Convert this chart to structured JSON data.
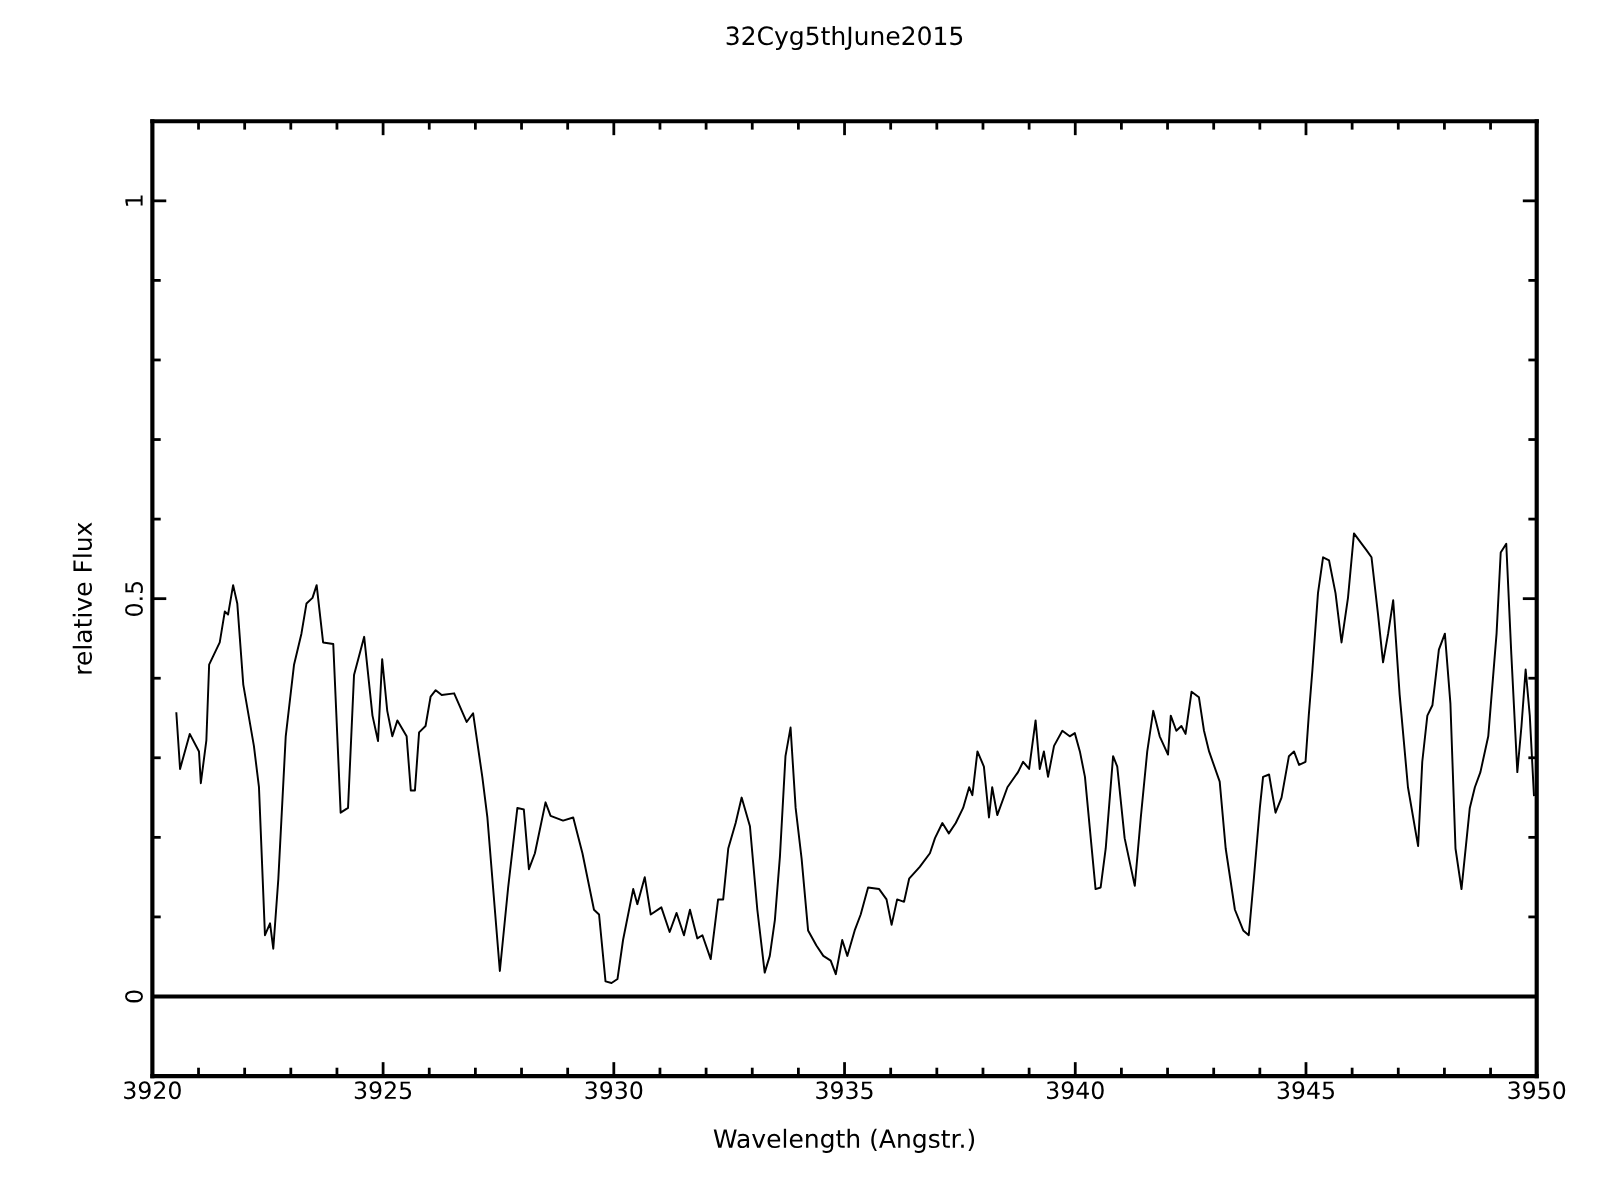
{
  "chart_data": {
    "type": "line",
    "title": "32Cyg5thJune2015",
    "xlabel": "Wavelength (Angstr.)",
    "ylabel": "relative Flux",
    "xlim": [
      3920,
      3950
    ],
    "ylim": [
      -0.1,
      1.1
    ],
    "xticks": [
      3920,
      {
        "value": 3921,
        "label": null
      },
      {
        "value": 3922,
        "label": null
      },
      {
        "value": 3923,
        "label": null
      },
      {
        "value": 3924,
        "label": null
      },
      3925,
      {
        "value": 3926,
        "label": null
      },
      {
        "value": 3927,
        "label": null
      },
      {
        "value": 3928,
        "label": null
      },
      {
        "value": 3929,
        "label": null
      },
      3930,
      {
        "value": 3931,
        "label": null
      },
      {
        "value": 3932,
        "label": null
      },
      {
        "value": 3933,
        "label": null
      },
      {
        "value": 3934,
        "label": null
      },
      3935,
      {
        "value": 3936,
        "label": null
      },
      {
        "value": 3937,
        "label": null
      },
      {
        "value": 3938,
        "label": null
      },
      {
        "value": 3939,
        "label": null
      },
      3940,
      {
        "value": 3941,
        "label": null
      },
      {
        "value": 3942,
        "label": null
      },
      {
        "value": 3943,
        "label": null
      },
      {
        "value": 3944,
        "label": null
      },
      3945,
      {
        "value": 3946,
        "label": null
      },
      {
        "value": 3947,
        "label": null
      },
      {
        "value": 3948,
        "label": null
      },
      {
        "value": 3949,
        "label": null
      },
      3950
    ],
    "yticks": [
      0,
      {
        "value": 0.1,
        "label": null
      },
      {
        "value": 0.2,
        "label": null
      },
      {
        "value": 0.3,
        "label": null
      },
      {
        "value": 0.4,
        "label": null
      },
      0.5,
      {
        "value": 0.6,
        "label": null
      },
      {
        "value": 0.7,
        "label": null
      },
      {
        "value": 0.8,
        "label": null
      },
      {
        "value": 0.9,
        "label": null
      },
      1
    ],
    "grid": false,
    "marker": "none",
    "line_style": "solid",
    "ref_lines": [
      {
        "axis": "y",
        "value": 0,
        "color": "#000000",
        "line_style": "solid"
      }
    ],
    "series": [
      {
        "color": "#000000",
        "x": [
          3920.52,
          3920.6,
          3920.81,
          3921.01,
          3921.05,
          3921.17,
          3921.23,
          3921.46,
          3921.57,
          3921.64,
          3921.75,
          3921.84,
          3921.97,
          3922.2,
          3922.31,
          3922.44,
          3922.55,
          3922.62,
          3922.73,
          3922.89,
          3923.07,
          3923.23,
          3923.34,
          3923.47,
          3923.56,
          3923.7,
          3923.92,
          3924.08,
          3924.24,
          3924.37,
          3924.59,
          3924.77,
          3924.89,
          3924.98,
          3925.09,
          3925.2,
          3925.31,
          3925.51,
          3925.6,
          3925.69,
          3925.78,
          3925.92,
          3926.03,
          3926.14,
          3926.27,
          3926.54,
          3926.81,
          3926.95,
          3927.15,
          3927.26,
          3927.53,
          3927.71,
          3927.91,
          3928.05,
          3928.16,
          3928.29,
          3928.52,
          3928.63,
          3928.9,
          3929.12,
          3929.32,
          3929.57,
          3929.68,
          3929.82,
          3929.95,
          3930.08,
          3930.2,
          3930.42,
          3930.51,
          3930.67,
          3930.8,
          3931.03,
          3931.21,
          3931.36,
          3931.52,
          3931.65,
          3931.81,
          3931.92,
          3932.1,
          3932.26,
          3932.37,
          3932.48,
          3932.64,
          3932.77,
          3932.95,
          3933.11,
          3933.27,
          3933.38,
          3933.49,
          3933.6,
          3933.72,
          3933.83,
          3933.94,
          3934.07,
          3934.21,
          3934.39,
          3934.54,
          3934.7,
          3934.81,
          3934.95,
          3935.06,
          3935.22,
          3935.35,
          3935.51,
          3935.75,
          3935.91,
          3936.02,
          3936.14,
          3936.29,
          3936.4,
          3936.63,
          3936.85,
          3936.96,
          3937.12,
          3937.26,
          3937.41,
          3937.57,
          3937.7,
          3937.77,
          3937.88,
          3938.02,
          3938.13,
          3938.2,
          3938.31,
          3938.53,
          3938.76,
          3938.87,
          3939.0,
          3939.14,
          3939.23,
          3939.32,
          3939.41,
          3939.54,
          3939.72,
          3939.88,
          3939.99,
          3940.1,
          3940.21,
          3940.44,
          3940.55,
          3940.66,
          3940.82,
          3940.91,
          3941.07,
          3941.29,
          3941.42,
          3941.56,
          3941.69,
          3941.83,
          3942.01,
          3942.07,
          3942.19,
          3942.3,
          3942.39,
          3942.52,
          3942.68,
          3942.79,
          3942.9,
          3943.13,
          3943.26,
          3943.46,
          3943.64,
          3943.76,
          3943.87,
          3944.0,
          3944.07,
          3944.2,
          3944.34,
          3944.47,
          3944.63,
          3944.74,
          3944.85,
          3944.99,
          3945.06,
          3945.14,
          3945.26,
          3945.37,
          3945.5,
          3945.64,
          3945.77,
          3945.91,
          3946.04,
          3946.18,
          3946.31,
          3946.42,
          3946.56,
          3946.67,
          3946.78,
          3946.89,
          3947.03,
          3947.21,
          3947.43,
          3947.52,
          3947.63,
          3947.74,
          3947.88,
          3948.01,
          3948.13,
          3948.24,
          3948.37,
          3948.55,
          3948.66,
          3948.78,
          3948.95,
          3949.13,
          3949.22,
          3949.34,
          3949.45,
          3949.58,
          3949.67,
          3949.76,
          3949.85,
          3949.94
        ],
        "values": [
          0.356,
          0.286,
          0.33,
          0.308,
          0.268,
          0.322,
          0.417,
          0.445,
          0.484,
          0.48,
          0.517,
          0.494,
          0.392,
          0.315,
          0.263,
          0.077,
          0.092,
          0.06,
          0.148,
          0.327,
          0.417,
          0.456,
          0.494,
          0.501,
          0.517,
          0.445,
          0.443,
          0.231,
          0.237,
          0.404,
          0.452,
          0.353,
          0.321,
          0.424,
          0.359,
          0.327,
          0.347,
          0.327,
          0.259,
          0.259,
          0.332,
          0.34,
          0.377,
          0.385,
          0.379,
          0.381,
          0.345,
          0.356,
          0.276,
          0.225,
          0.032,
          0.137,
          0.237,
          0.235,
          0.16,
          0.18,
          0.244,
          0.227,
          0.221,
          0.225,
          0.18,
          0.109,
          0.103,
          0.019,
          0.017,
          0.022,
          0.071,
          0.135,
          0.116,
          0.15,
          0.103,
          0.112,
          0.081,
          0.105,
          0.077,
          0.109,
          0.073,
          0.077,
          0.047,
          0.122,
          0.122,
          0.186,
          0.218,
          0.25,
          0.214,
          0.109,
          0.03,
          0.051,
          0.096,
          0.176,
          0.302,
          0.338,
          0.237,
          0.173,
          0.083,
          0.064,
          0.051,
          0.045,
          0.028,
          0.071,
          0.051,
          0.083,
          0.103,
          0.137,
          0.135,
          0.122,
          0.09,
          0.122,
          0.119,
          0.148,
          0.163,
          0.18,
          0.199,
          0.218,
          0.205,
          0.218,
          0.237,
          0.263,
          0.253,
          0.308,
          0.289,
          0.225,
          0.263,
          0.228,
          0.263,
          0.282,
          0.295,
          0.286,
          0.347,
          0.286,
          0.308,
          0.276,
          0.315,
          0.334,
          0.327,
          0.331,
          0.308,
          0.276,
          0.135,
          0.137,
          0.186,
          0.302,
          0.289,
          0.199,
          0.139,
          0.225,
          0.308,
          0.359,
          0.327,
          0.304,
          0.353,
          0.334,
          0.34,
          0.33,
          0.383,
          0.376,
          0.334,
          0.308,
          0.27,
          0.186,
          0.109,
          0.083,
          0.077,
          0.148,
          0.237,
          0.276,
          0.279,
          0.231,
          0.25,
          0.302,
          0.308,
          0.291,
          0.295,
          0.353,
          0.411,
          0.507,
          0.552,
          0.548,
          0.507,
          0.445,
          0.501,
          0.582,
          0.571,
          0.561,
          0.552,
          0.481,
          0.42,
          0.456,
          0.498,
          0.379,
          0.263,
          0.189,
          0.295,
          0.353,
          0.366,
          0.436,
          0.456,
          0.368,
          0.186,
          0.135,
          0.237,
          0.263,
          0.282,
          0.327,
          0.456,
          0.558,
          0.569,
          0.43,
          0.282,
          0.34,
          0.411,
          0.353,
          0.253
        ]
      }
    ]
  }
}
